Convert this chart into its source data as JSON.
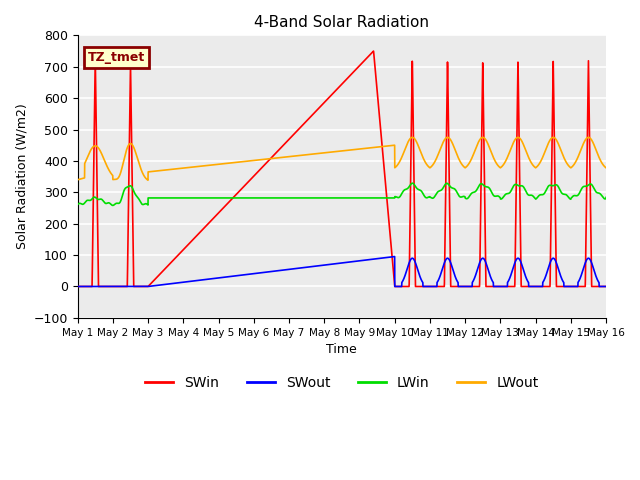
{
  "title": "4-Band Solar Radiation",
  "xlabel": "Time",
  "ylabel": "Solar Radiation (W/m2)",
  "ylim": [
    -100,
    800
  ],
  "annotation_text": "TZ_tmet",
  "annotation_bg": "#ffffcc",
  "annotation_border": "#8b0000",
  "swin_color": "#ff0000",
  "swout_color": "#0000ff",
  "lwin_color": "#00dd00",
  "lwout_color": "#ffaa00",
  "bg_color": "#ebebeb",
  "grid_color": "#ffffff",
  "n_days": 15,
  "day_start": 1,
  "yticks": [
    -100,
    0,
    100,
    200,
    300,
    400,
    500,
    600,
    700,
    800
  ]
}
